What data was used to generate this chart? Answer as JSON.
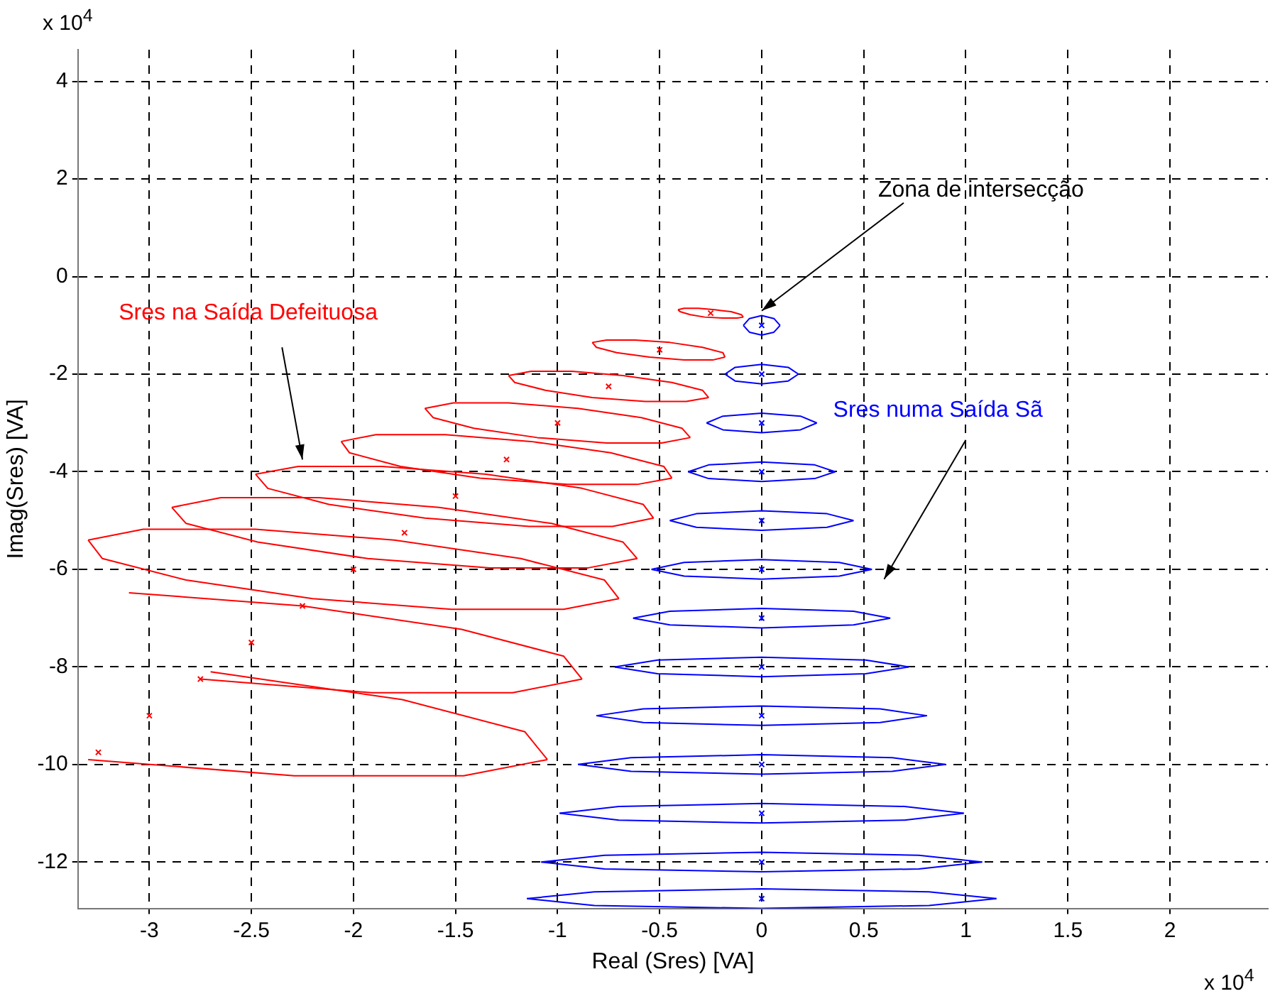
{
  "chart_data": {
    "type": "line",
    "xlabel": "Real (Sres) [VA]",
    "ylabel": "Imag(Sres) [VA]",
    "xlim": [
      -3.35,
      2.48
    ],
    "ylim": [
      -12.95,
      4.65
    ],
    "xticks": [
      -3,
      -2.5,
      -2,
      -1.5,
      -1,
      -0.5,
      0,
      0.5,
      1,
      1.5,
      2
    ],
    "yticks": [
      -12,
      -10,
      -8,
      -6,
      -4,
      -2,
      0,
      2,
      4
    ],
    "grid": true,
    "annotations": [
      "x 10$^{4}$",
      "x 10$^{4}$",
      {
        "text": "Zona de intersecção",
        "x": 0,
        "y": -0.7
      }
    ],
    "series": [
      {
        "name": "Sres na Saída Defeituosa",
        "color": "#ff0000",
        "x": [
          -0.41,
          -0.38,
          -0.31,
          -0.23,
          -0.15,
          -0.1,
          -0.09
        ],
        "values": [
          -0.68,
          -0.65,
          -0.65,
          -0.68,
          -0.72,
          -0.78,
          -0.83
        ]
      },
      {
        "color": "#ff0000",
        "x": [
          -0.41,
          -0.4,
          -0.35,
          -0.28,
          -0.19,
          -0.12,
          -0.09
        ],
        "values": [
          -0.68,
          -0.72,
          -0.78,
          -0.83,
          -0.85,
          -0.85,
          -0.83
        ]
      },
      {
        "color": "#ff0000",
        "x": [
          -0.83,
          -0.76,
          -0.62,
          -0.45,
          -0.29,
          -0.19,
          -0.18
        ],
        "values": [
          -1.35,
          -1.3,
          -1.3,
          -1.35,
          -1.45,
          -1.56,
          -1.65
        ]
      },
      {
        "color": "#ff0000",
        "x": [
          -0.83,
          -0.81,
          -0.71,
          -0.55,
          -0.38,
          -0.24,
          -0.18
        ],
        "values": [
          -1.35,
          -1.45,
          -1.56,
          -1.65,
          -1.71,
          -1.71,
          -1.65
        ]
      },
      {
        "color": "#ff0000",
        "x": [
          -1.24,
          -1.13,
          -0.93,
          -0.68,
          -0.44,
          -0.29,
          -0.26
        ],
        "values": [
          -2.03,
          -1.94,
          -1.94,
          -2.03,
          -2.17,
          -2.33,
          -2.48
        ]
      },
      {
        "color": "#ff0000",
        "x": [
          -1.24,
          -1.21,
          -1.06,
          -0.83,
          -0.57,
          -0.37,
          -0.26
        ],
        "values": [
          -2.03,
          -2.17,
          -2.33,
          -2.48,
          -2.56,
          -2.56,
          -2.48
        ]
      },
      {
        "color": "#ff0000",
        "x": [
          -1.65,
          -1.51,
          -1.24,
          -0.9,
          -0.59,
          -0.39,
          -0.35
        ],
        "values": [
          -2.7,
          -2.59,
          -2.59,
          -2.7,
          -2.89,
          -3.11,
          -3.3
        ]
      },
      {
        "color": "#ff0000",
        "x": [
          -1.65,
          -1.61,
          -1.41,
          -1.1,
          -0.76,
          -0.49,
          -0.35
        ],
        "values": [
          -2.7,
          -2.89,
          -3.11,
          -3.3,
          -3.41,
          -3.41,
          -3.3
        ]
      },
      {
        "color": "#ff0000",
        "x": [
          -2.06,
          -1.89,
          -1.55,
          -1.13,
          -0.74,
          -0.48,
          -0.44
        ],
        "values": [
          -3.38,
          -3.24,
          -3.24,
          -3.38,
          -3.61,
          -3.89,
          -4.13
        ]
      },
      {
        "color": "#ff0000",
        "x": [
          -2.06,
          -2.02,
          -1.77,
          -1.38,
          -0.95,
          -0.61,
          -0.44
        ],
        "values": [
          -3.38,
          -3.61,
          -3.89,
          -4.13,
          -4.26,
          -4.26,
          -4.13
        ]
      },
      {
        "color": "#ff0000",
        "x": [
          -2.48,
          -2.27,
          -1.86,
          -1.35,
          -0.88,
          -0.58,
          -0.53
        ],
        "values": [
          -4.05,
          -3.89,
          -3.89,
          -4.05,
          -4.34,
          -4.67,
          -4.95
        ]
      },
      {
        "color": "#ff0000",
        "x": [
          -2.48,
          -2.42,
          -2.12,
          -1.65,
          -1.14,
          -0.73,
          -0.53
        ],
        "values": [
          -4.05,
          -4.34,
          -4.67,
          -4.95,
          -5.12,
          -5.12,
          -4.95
        ]
      },
      {
        "color": "#ff0000",
        "x": [
          -2.89,
          -2.65,
          -2.17,
          -1.58,
          -1.03,
          -0.68,
          -0.61
        ],
        "values": [
          -4.73,
          -4.53,
          -4.53,
          -4.73,
          -5.06,
          -5.44,
          -5.78
        ]
      },
      {
        "color": "#ff0000",
        "x": [
          -2.89,
          -2.82,
          -2.47,
          -1.93,
          -1.33,
          -0.85,
          -0.61
        ],
        "values": [
          -4.73,
          -5.06,
          -5.44,
          -5.78,
          -5.97,
          -5.97,
          -5.78
        ]
      },
      {
        "color": "#ff0000",
        "x": [
          -3.3,
          -3.03,
          -2.48,
          -1.8,
          -1.18,
          -0.77,
          -0.7
        ],
        "values": [
          -5.4,
          -5.18,
          -5.18,
          -5.4,
          -5.78,
          -6.22,
          -6.6
        ]
      },
      {
        "color": "#ff0000",
        "x": [
          -3.3,
          -3.23,
          -2.82,
          -2.2,
          -1.52,
          -0.97,
          -0.7
        ],
        "values": [
          -5.4,
          -5.78,
          -6.22,
          -6.6,
          -6.82,
          -6.82,
          -6.6
        ]
      },
      {
        "color": "#ff0000",
        "x": [
          -3.1,
          -2.25,
          -1.47,
          -0.97,
          -0.88
        ],
        "values": [
          -6.48,
          -6.75,
          -7.23,
          -7.78,
          -8.25
        ]
      },
      {
        "color": "#ff0000",
        "x": [
          -2.75,
          -1.91,
          -1.22,
          -0.88
        ],
        "values": [
          -8.25,
          -8.53,
          -8.53,
          -8.25
        ]
      },
      {
        "color": "#ff0000",
        "x": [
          -2.7,
          -1.76,
          -1.16,
          -1.05
        ],
        "values": [
          -8.1,
          -8.67,
          -9.33,
          -9.9
        ]
      },
      {
        "color": "#ff0000",
        "x": [
          -3.3,
          -2.29,
          -1.46,
          -1.05
        ],
        "values": [
          -9.9,
          -10.23,
          -10.23,
          -9.9
        ]
      },
      {
        "type": "scatter",
        "marker": "cross",
        "color": "#ff0000",
        "x": [
          -0.25,
          -0.5,
          -0.75,
          -1,
          -1.25,
          -1.5,
          -1.75,
          -2,
          -2.25,
          -2.5,
          -2.75,
          -3,
          -3.25
        ],
        "values": [
          -0.75,
          -1.5,
          -2.25,
          -3,
          -3.75,
          -4.5,
          -5.25,
          -6,
          -6.75,
          -7.5,
          -8.25,
          -9,
          -9.75
        ]
      },
      {
        "name": "Sres numa Saída Sã",
        "color": "#0000ff",
        "x": [
          -0.09,
          -0.06,
          0,
          0.06,
          0.09
        ],
        "values": [
          -1,
          -0.86,
          -0.8,
          -0.86,
          -1
        ]
      },
      {
        "color": "#0000ff",
        "x": [
          -0.09,
          -0.06,
          0,
          0.06,
          0.09
        ],
        "values": [
          -1,
          -1.14,
          -1.2,
          -1.14,
          -1
        ]
      },
      {
        "color": "#0000ff",
        "x": [
          -0.18,
          -0.13,
          0,
          0.13,
          0.18
        ],
        "values": [
          -2,
          -1.86,
          -1.8,
          -1.86,
          -2
        ]
      },
      {
        "color": "#0000ff",
        "x": [
          -0.18,
          -0.13,
          0,
          0.13,
          0.18
        ],
        "values": [
          -2,
          -2.14,
          -2.2,
          -2.14,
          -2
        ]
      },
      {
        "color": "#0000ff",
        "x": [
          -0.27,
          -0.19,
          0,
          0.19,
          0.27
        ],
        "values": [
          -3,
          -2.86,
          -2.8,
          -2.86,
          -3
        ]
      },
      {
        "color": "#0000ff",
        "x": [
          -0.27,
          -0.19,
          0,
          0.19,
          0.27
        ],
        "values": [
          -3,
          -3.14,
          -3.2,
          -3.14,
          -3
        ]
      },
      {
        "color": "#0000ff",
        "x": [
          -0.36,
          -0.26,
          0,
          0.26,
          0.36
        ],
        "values": [
          -4,
          -3.86,
          -3.8,
          -3.86,
          -4
        ]
      },
      {
        "color": "#0000ff",
        "x": [
          -0.36,
          -0.26,
          0,
          0.26,
          0.36
        ],
        "values": [
          -4,
          -4.14,
          -4.2,
          -4.14,
          -4
        ]
      },
      {
        "color": "#0000ff",
        "x": [
          -0.45,
          -0.32,
          0,
          0.32,
          0.45
        ],
        "values": [
          -5,
          -4.86,
          -4.8,
          -4.86,
          -5
        ]
      },
      {
        "color": "#0000ff",
        "x": [
          -0.45,
          -0.32,
          0,
          0.32,
          0.45
        ],
        "values": [
          -5,
          -5.14,
          -5.2,
          -5.14,
          -5
        ]
      },
      {
        "color": "#0000ff",
        "x": [
          -0.54,
          -0.38,
          0,
          0.38,
          0.54
        ],
        "values": [
          -6,
          -5.86,
          -5.8,
          -5.86,
          -6
        ]
      },
      {
        "color": "#0000ff",
        "x": [
          -0.54,
          -0.38,
          0,
          0.38,
          0.54
        ],
        "values": [
          -6,
          -6.14,
          -6.2,
          -6.14,
          -6
        ]
      },
      {
        "color": "#0000ff",
        "x": [
          -0.63,
          -0.45,
          0,
          0.45,
          0.63
        ],
        "values": [
          -7,
          -6.86,
          -6.8,
          -6.86,
          -7
        ]
      },
      {
        "color": "#0000ff",
        "x": [
          -0.63,
          -0.45,
          0,
          0.45,
          0.63
        ],
        "values": [
          -7,
          -7.14,
          -7.2,
          -7.14,
          -7
        ]
      },
      {
        "color": "#0000ff",
        "x": [
          -0.72,
          -0.51,
          0,
          0.51,
          0.72
        ],
        "values": [
          -8,
          -7.86,
          -7.8,
          -7.86,
          -8
        ]
      },
      {
        "color": "#0000ff",
        "x": [
          -0.72,
          -0.51,
          0,
          0.51,
          0.72
        ],
        "values": [
          -8,
          -8.14,
          -8.2,
          -8.14,
          -8
        ]
      },
      {
        "color": "#0000ff",
        "x": [
          -0.81,
          -0.58,
          0,
          0.58,
          0.81
        ],
        "values": [
          -9,
          -8.86,
          -8.8,
          -8.86,
          -9
        ]
      },
      {
        "color": "#0000ff",
        "x": [
          -0.81,
          -0.58,
          0,
          0.58,
          0.81
        ],
        "values": [
          -9,
          -9.14,
          -9.2,
          -9.14,
          -9
        ]
      },
      {
        "color": "#0000ff",
        "x": [
          -0.9,
          -0.64,
          0,
          0.64,
          0.9
        ],
        "values": [
          -10,
          -9.86,
          -9.8,
          -9.86,
          -10
        ]
      },
      {
        "color": "#0000ff",
        "x": [
          -0.9,
          -0.64,
          0,
          0.64,
          0.9
        ],
        "values": [
          -10,
          -10.14,
          -10.2,
          -10.14,
          -10
        ]
      },
      {
        "color": "#0000ff",
        "x": [
          -0.99,
          -0.7,
          0,
          0.7,
          0.99
        ],
        "values": [
          -11,
          -10.86,
          -10.8,
          -10.86,
          -11
        ]
      },
      {
        "color": "#0000ff",
        "x": [
          -0.99,
          -0.7,
          0,
          0.7,
          0.99
        ],
        "values": [
          -11,
          -11.14,
          -11.2,
          -11.14,
          -11
        ]
      },
      {
        "color": "#0000ff",
        "x": [
          -1.08,
          -0.77,
          0,
          0.77,
          1.08
        ],
        "values": [
          -12,
          -11.86,
          -11.8,
          -11.86,
          -12
        ]
      },
      {
        "color": "#0000ff",
        "x": [
          -1.08,
          -0.77,
          0,
          0.77,
          1.08
        ],
        "values": [
          -12,
          -12.14,
          -12.2,
          -12.14,
          -12
        ]
      },
      {
        "color": "#0000ff",
        "x": [
          -1.15,
          -0.82,
          0,
          0.82,
          1.15
        ],
        "values": [
          -12.75,
          -12.61,
          -12.55,
          -12.61,
          -12.75
        ]
      },
      {
        "color": "#0000ff",
        "x": [
          -1.15,
          -0.82,
          0,
          0.82,
          1.15
        ],
        "values": [
          -12.75,
          -12.89,
          -12.95,
          -12.89,
          -12.75
        ]
      },
      {
        "type": "scatter",
        "marker": "cross",
        "color": "#0000ff",
        "x": [
          0,
          0,
          0,
          0,
          0,
          0,
          0,
          0,
          0,
          0,
          0,
          0,
          0
        ],
        "values": [
          -1,
          -2,
          -3,
          -4,
          -5,
          -6,
          -7,
          -8,
          -9,
          -10,
          -11,
          -12,
          -12.75
        ]
      }
    ]
  }
}
